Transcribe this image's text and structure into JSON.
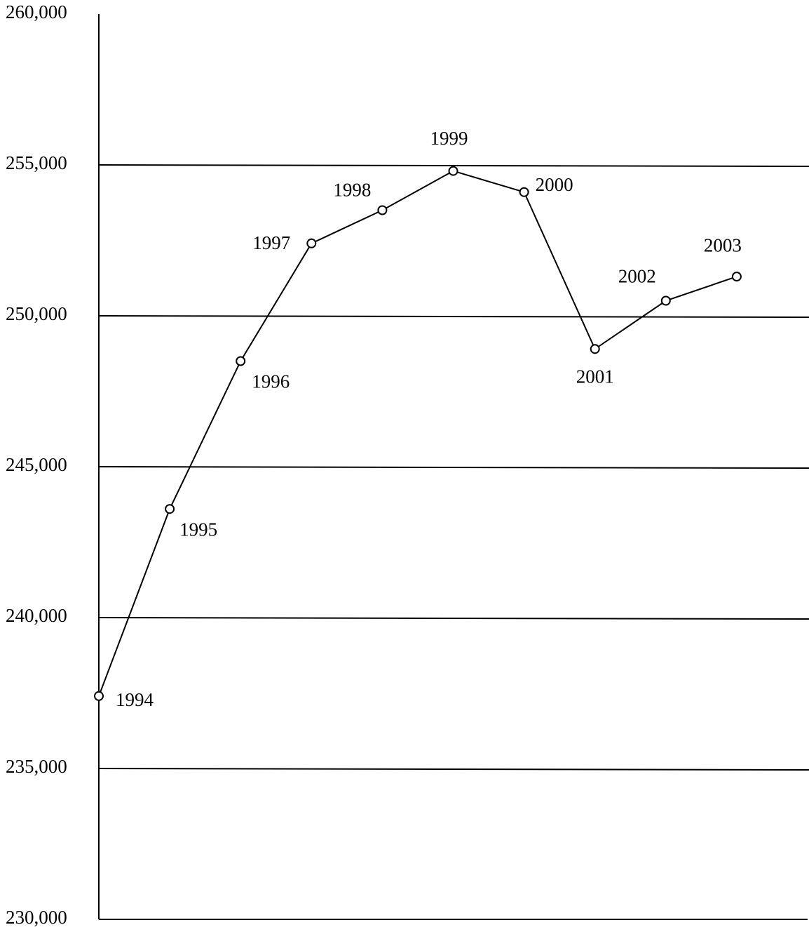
{
  "chart_data": {
    "type": "line",
    "categories": [
      "1994",
      "1995",
      "1996",
      "1997",
      "1998",
      "1999",
      "2000",
      "2001",
      "2002",
      "2003"
    ],
    "series": [
      {
        "name": null,
        "color": "#000000",
        "values": [
          237400,
          243600,
          248500,
          252400,
          253500,
          254800,
          254100,
          248900,
          250500,
          251300
        ]
      }
    ],
    "ylim": [
      230000,
      260000
    ],
    "yticks": [
      {
        "value": 230000,
        "label": "230,000"
      },
      {
        "value": 235000,
        "label": "235,000"
      },
      {
        "value": 240000,
        "label": "240,000"
      },
      {
        "value": 245000,
        "label": "245,000"
      },
      {
        "value": 250000,
        "label": "250,000"
      },
      {
        "value": 255000,
        "label": "255,000"
      },
      {
        "value": 260000,
        "label": "260,000"
      }
    ],
    "grid": true
  }
}
